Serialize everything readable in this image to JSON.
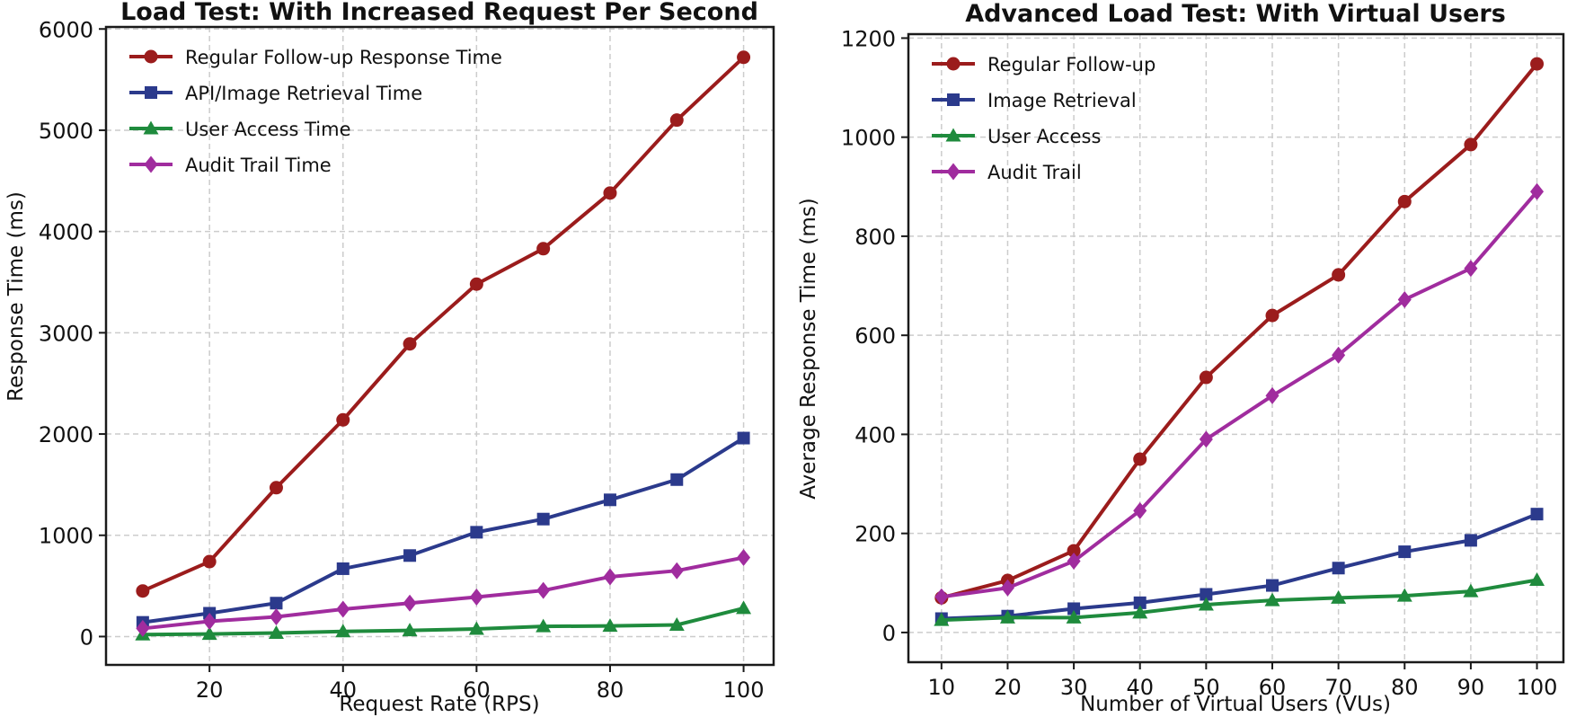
{
  "page": {
    "background": "#ffffff",
    "grid_color": "#cccccc",
    "frame_color": "#1a1a1a",
    "text_color": "#111111"
  },
  "chart_data": [
    {
      "type": "line",
      "title": "Load Test: With Increased Request Per Second",
      "xlabel": "Request Rate (RPS)",
      "ylabel": "Response Time (ms)",
      "x": [
        10,
        20,
        30,
        40,
        50,
        60,
        70,
        80,
        90,
        100
      ],
      "xticks": [
        20,
        40,
        60,
        80,
        100
      ],
      "yticks": [
        0,
        1000,
        2000,
        3000,
        4000,
        5000,
        6000
      ],
      "xlim": [
        4.5,
        104.5
      ],
      "ylim": [
        -280,
        6020
      ],
      "grid": true,
      "legend_position": "upper-left",
      "series": [
        {
          "name": "Regular Follow-up Response Time",
          "color": "#9B1C1C",
          "marker": "circle",
          "values": [
            450,
            740,
            1470,
            2140,
            2890,
            3480,
            3830,
            4380,
            5100,
            5720
          ]
        },
        {
          "name": "API/Image Retrieval Time",
          "color": "#2B3A8C",
          "marker": "square",
          "values": [
            140,
            230,
            330,
            670,
            800,
            1030,
            1160,
            1350,
            1550,
            1960
          ]
        },
        {
          "name": "User Access Time",
          "color": "#1F8B3D",
          "marker": "triangle",
          "values": [
            20,
            25,
            35,
            50,
            60,
            75,
            100,
            105,
            115,
            280
          ]
        },
        {
          "name": "Audit Trail Time",
          "color": "#A02C9E",
          "marker": "diamond",
          "values": [
            80,
            150,
            195,
            270,
            330,
            390,
            455,
            590,
            650,
            780
          ]
        }
      ]
    },
    {
      "type": "line",
      "title": "Advanced Load Test: With Virtual Users",
      "xlabel": "Number of Virtual Users (VUs)",
      "ylabel": "Average Response Time (ms)",
      "x": [
        10,
        20,
        30,
        40,
        50,
        60,
        70,
        80,
        90,
        100
      ],
      "xticks": [
        10,
        20,
        30,
        40,
        50,
        60,
        70,
        80,
        90,
        100
      ],
      "yticks": [
        0,
        200,
        400,
        600,
        800,
        1000,
        1200
      ],
      "xlim": [
        5.0,
        104.0
      ],
      "ylim": [
        -60,
        1208
      ],
      "grid": true,
      "legend_position": "upper-left",
      "series": [
        {
          "name": "Regular Follow-up",
          "color": "#9B1C1C",
          "marker": "circle",
          "values": [
            70,
            105,
            165,
            350,
            515,
            640,
            722,
            870,
            985,
            1148
          ]
        },
        {
          "name": "Image Retrieval",
          "color": "#2B3A8C",
          "marker": "square",
          "values": [
            28,
            33,
            48,
            60,
            77,
            95,
            130,
            163,
            186,
            239
          ]
        },
        {
          "name": "User Access",
          "color": "#1F8B3D",
          "marker": "triangle",
          "values": [
            25,
            30,
            30,
            40,
            56,
            65,
            70,
            74,
            83,
            106
          ]
        },
        {
          "name": "Audit Trail",
          "color": "#A02C9E",
          "marker": "diamond",
          "values": [
            72,
            90,
            144,
            246,
            390,
            478,
            560,
            672,
            735,
            890
          ]
        }
      ]
    }
  ]
}
